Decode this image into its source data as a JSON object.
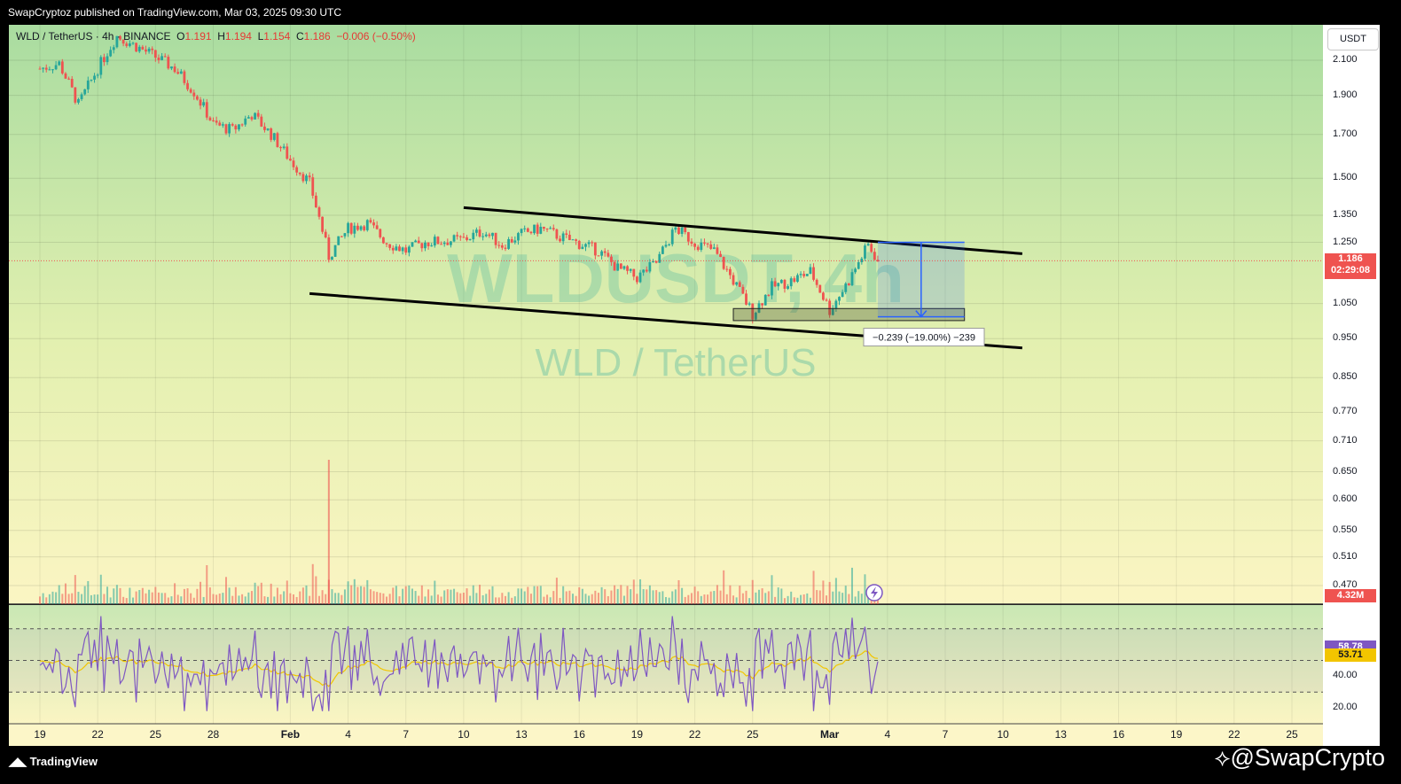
{
  "header": {
    "published": "SwapCryptoz published on TradingView.com, Mar 03, 2025 09:30 UTC"
  },
  "legend": {
    "symbol": "WLD / TetherUS · 4h · BINANCE",
    "o_label": "O",
    "o": "1.191",
    "h_label": "H",
    "h": "1.194",
    "l_label": "L",
    "l": "1.154",
    "c_label": "C",
    "c": "1.186",
    "chg": "−0.006 (−0.50%)"
  },
  "watermark": {
    "big": "WLDUSDT, 4h",
    "small": "WLD / TetherUS"
  },
  "currency_button": "USDT",
  "measure_label": "−0.239 (−19.00%) −239",
  "badges": {
    "price": "1.186",
    "countdown": "02:29:08",
    "volume": "4.32M",
    "rsi": "58.78",
    "rsi_ma": "53.71"
  },
  "footer": {
    "logo": "TradingView",
    "handle": "@SwapCrypto"
  },
  "colors": {
    "up": "#26a69a",
    "down": "#ef5350",
    "rsi": "#7e57c2",
    "rsi_ma": "#f2c500",
    "measure": "#2962ff"
  },
  "chart_data": {
    "type": "line",
    "title": "WLD / TetherUS · 4h · BINANCE",
    "y_scale": "log",
    "ylim": [
      0.42,
      2.3
    ],
    "y_ticks": [
      "2.100",
      "1.900",
      "1.700",
      "1.500",
      "1.350",
      "1.250",
      "1.050",
      "0.950",
      "0.850",
      "0.770",
      "0.710",
      "0.650",
      "0.600",
      "0.550",
      "0.510",
      "0.470"
    ],
    "x_ticks": [
      "19",
      "22",
      "25",
      "28",
      "Feb",
      "4",
      "7",
      "10",
      "13",
      "16",
      "19",
      "22",
      "25",
      "Mar",
      "4",
      "7",
      "10",
      "13",
      "16",
      "19",
      "22",
      "25"
    ],
    "x_ticks_dates": [
      "2025-01-19",
      "2025-01-22",
      "2025-01-25",
      "2025-01-28",
      "2025-02-01",
      "2025-02-04",
      "2025-02-07",
      "2025-02-10",
      "2025-02-13",
      "2025-02-16",
      "2025-02-19",
      "2025-02-22",
      "2025-02-25",
      "2025-03-01",
      "2025-03-04",
      "2025-03-07",
      "2025-03-10",
      "2025-03-13",
      "2025-03-16",
      "2025-03-19",
      "2025-03-22",
      "2025-03-25"
    ],
    "price_path": [
      [
        "2025-01-19",
        2.05
      ],
      [
        "2025-01-20",
        2.08
      ],
      [
        "2025-01-21",
        1.85
      ],
      [
        "2025-01-22",
        2.05
      ],
      [
        "2025-01-23",
        2.25
      ],
      [
        "2025-01-25",
        2.12
      ],
      [
        "2025-01-26",
        2.05
      ],
      [
        "2025-01-27",
        1.92
      ],
      [
        "2025-01-28",
        1.75
      ],
      [
        "2025-01-29",
        1.72
      ],
      [
        "2025-01-30",
        1.8
      ],
      [
        "2025-01-31",
        1.7
      ],
      [
        "2025-02-01",
        1.58
      ],
      [
        "2025-02-02",
        1.48
      ],
      [
        "2025-02-03",
        1.2
      ],
      [
        "2025-02-04",
        1.3
      ],
      [
        "2025-02-05",
        1.32
      ],
      [
        "2025-02-06",
        1.25
      ],
      [
        "2025-02-07",
        1.22
      ],
      [
        "2025-02-08",
        1.25
      ],
      [
        "2025-02-10",
        1.26
      ],
      [
        "2025-02-11",
        1.29
      ],
      [
        "2025-02-12",
        1.24
      ],
      [
        "2025-02-13",
        1.28
      ],
      [
        "2025-02-14",
        1.3
      ],
      [
        "2025-02-15",
        1.27
      ],
      [
        "2025-02-17",
        1.22
      ],
      [
        "2025-02-18",
        1.16
      ],
      [
        "2025-02-19",
        1.13
      ],
      [
        "2025-02-20",
        1.18
      ],
      [
        "2025-02-21",
        1.3
      ],
      [
        "2025-02-22",
        1.25
      ],
      [
        "2025-02-23",
        1.22
      ],
      [
        "2025-02-24",
        1.12
      ],
      [
        "2025-02-25",
        1.02
      ],
      [
        "2025-02-26",
        1.1
      ],
      [
        "2025-02-27",
        1.12
      ],
      [
        "2025-02-28",
        1.15
      ],
      [
        "2025-03-01",
        1.03
      ],
      [
        "2025-03-02",
        1.12
      ],
      [
        "2025-03-03",
        1.24
      ],
      [
        "2025-03-03T12",
        1.186
      ]
    ],
    "channel_upper": [
      [
        "2025-02-10",
        1.38
      ],
      [
        "2025-03-11",
        1.21
      ]
    ],
    "channel_lower": [
      [
        "2025-02-02",
        1.08
      ],
      [
        "2025-03-11",
        0.925
      ]
    ],
    "support_zone": [
      1.0,
      1.035
    ],
    "measure": {
      "from": 1.25,
      "to": 1.011,
      "change": -0.239,
      "pct": -19.0
    },
    "volume_max_m": 9.5,
    "volume_last_m": 4.32,
    "rsi": {
      "levels": [
        70,
        50,
        30
      ],
      "last": 58.78,
      "ma_last": 53.71,
      "y_ticks": [
        "40.00",
        "20.00"
      ]
    }
  }
}
